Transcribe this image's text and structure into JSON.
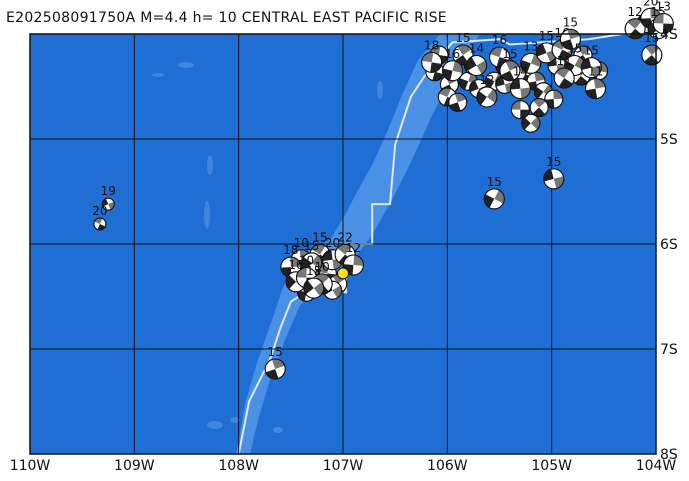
{
  "title": "E202508091750A M=4.4 h= 10 CENTRAL EAST PACIFIC RISE",
  "colors": {
    "ocean": "#1f6ed4",
    "ridge_shallow": "#4a90e4",
    "ridge_seamount": "#3f86de",
    "plate_boundary": "#dfe8f8",
    "grid": "#111111",
    "epicenter": "#ffe400"
  },
  "map": {
    "lon_range": [
      -110,
      -104
    ],
    "lat_range": [
      -8,
      -4
    ],
    "lon_ticks": [
      {
        "value": -110,
        "label": "110W"
      },
      {
        "value": -109,
        "label": "109W"
      },
      {
        "value": -108,
        "label": "108W"
      },
      {
        "value": -107,
        "label": "107W"
      },
      {
        "value": -106,
        "label": "106W"
      },
      {
        "value": -105,
        "label": "105W"
      },
      {
        "value": -104,
        "label": "104W"
      }
    ],
    "lat_ticks": [
      {
        "value": -4,
        "label": "4S"
      },
      {
        "value": -5,
        "label": "5S"
      },
      {
        "value": -6,
        "label": "6S"
      },
      {
        "value": -7,
        "label": "7S"
      },
      {
        "value": -8,
        "label": "8S"
      }
    ],
    "plate_boundary": [
      [
        -108.0,
        -8.0
      ],
      [
        -107.9,
        -7.5
      ],
      [
        -107.7,
        -7.1
      ],
      [
        -107.6,
        -6.8
      ],
      [
        -107.5,
        -6.55
      ],
      [
        -107.35,
        -6.45
      ],
      [
        -106.97,
        -6.46
      ],
      [
        -106.98,
        -6.0
      ],
      [
        -106.72,
        -6.0
      ],
      [
        -106.72,
        -5.62
      ],
      [
        -106.55,
        -5.62
      ],
      [
        -106.5,
        -5.05
      ],
      [
        -106.35,
        -4.6
      ],
      [
        -106.15,
        -4.3
      ],
      [
        -105.95,
        -4.08
      ],
      [
        -105.5,
        -4.05
      ],
      [
        -105.4,
        -4.1
      ],
      [
        -104.65,
        -4.05
      ],
      [
        -104.32,
        -4.0
      ]
    ],
    "epicenter": {
      "lon": -107.0,
      "lat": -6.28
    },
    "events": [
      {
        "lon": -109.25,
        "lat": -5.62,
        "mag": "19"
      },
      {
        "lon": -109.33,
        "lat": -5.81,
        "mag": "20"
      },
      {
        "lon": -107.65,
        "lat": -7.19,
        "mag": "15"
      },
      {
        "lon": -105.55,
        "lat": -5.57,
        "mag": "15"
      },
      {
        "lon": -104.98,
        "lat": -5.38,
        "mag": "15"
      },
      {
        "lon": -107.22,
        "lat": -6.1,
        "mag": "15"
      },
      {
        "lon": -107.4,
        "lat": -6.15,
        "mag": "10"
      },
      {
        "lon": -107.3,
        "lat": -6.18,
        "mag": "15"
      },
      {
        "lon": -107.1,
        "lat": -6.15,
        "mag": "20"
      },
      {
        "lon": -106.98,
        "lat": -6.1,
        "mag": "22"
      },
      {
        "lon": -107.5,
        "lat": -6.22,
        "mag": "18"
      },
      {
        "lon": -107.45,
        "lat": -6.36,
        "mag": "16"
      },
      {
        "lon": -107.35,
        "lat": -6.32,
        "mag": "10"
      },
      {
        "lon": -107.2,
        "lat": -6.38,
        "mag": "10"
      },
      {
        "lon": -106.9,
        "lat": -6.2,
        "mag": "12"
      },
      {
        "lon": -107.28,
        "lat": -6.42,
        "mag": "15"
      },
      {
        "lon": -106.15,
        "lat": -4.27,
        "mag": "18"
      },
      {
        "lon": -105.85,
        "lat": -4.2,
        "mag": "15"
      },
      {
        "lon": -105.95,
        "lat": -4.35,
        "mag": "16"
      },
      {
        "lon": -105.72,
        "lat": -4.3,
        "mag": "14"
      },
      {
        "lon": -105.5,
        "lat": -4.22,
        "mag": "16"
      },
      {
        "lon": -105.4,
        "lat": -4.35,
        "mag": "15"
      },
      {
        "lon": -105.2,
        "lat": -4.28,
        "mag": "13"
      },
      {
        "lon": -105.05,
        "lat": -4.18,
        "mag": "15"
      },
      {
        "lon": -104.9,
        "lat": -4.15,
        "mag": "16"
      },
      {
        "lon": -104.82,
        "lat": -4.05,
        "mag": "15"
      },
      {
        "lon": -104.78,
        "lat": -4.3,
        "mag": "15"
      },
      {
        "lon": -104.62,
        "lat": -4.32,
        "mag": "15"
      },
      {
        "lon": -104.88,
        "lat": -4.42,
        "mag": "11"
      },
      {
        "lon": -104.58,
        "lat": -4.52,
        "mag": "11"
      },
      {
        "lon": -105.62,
        "lat": -4.6,
        "mag": "12"
      },
      {
        "lon": -105.3,
        "lat": -4.52,
        "mag": "14"
      },
      {
        "lon": -104.2,
        "lat": -3.95,
        "mag": "12"
      },
      {
        "lon": -104.05,
        "lat": -3.85,
        "mag": "20"
      },
      {
        "lon": -103.98,
        "lat": -3.95,
        "mag": "15"
      },
      {
        "lon": -103.93,
        "lat": -3.9,
        "mag": "13"
      },
      {
        "lon": -104.04,
        "lat": -4.2,
        "mag": "15"
      }
    ],
    "unlabeled_events": [
      [
        -107.45,
        -6.28
      ],
      [
        -107.15,
        -6.28
      ],
      [
        -107.05,
        -6.38
      ],
      [
        -107.35,
        -6.46
      ],
      [
        -107.1,
        -6.44
      ],
      [
        -106.12,
        -4.36
      ],
      [
        -105.98,
        -4.48
      ],
      [
        -105.8,
        -4.45
      ],
      [
        -105.7,
        -4.52
      ],
      [
        -106.0,
        -4.6
      ],
      [
        -105.9,
        -4.65
      ],
      [
        -105.55,
        -4.45
      ],
      [
        -105.45,
        -4.48
      ],
      [
        -105.25,
        -4.38
      ],
      [
        -105.15,
        -4.45
      ],
      [
        -105.08,
        -4.55
      ],
      [
        -104.95,
        -4.3
      ],
      [
        -104.72,
        -4.4
      ],
      [
        -104.98,
        -4.62
      ],
      [
        -105.2,
        -4.85
      ],
      [
        -105.3,
        -4.72
      ],
      [
        -105.12,
        -4.7
      ],
      [
        -105.45,
        -4.3
      ],
      [
        -105.75,
        -4.3
      ],
      [
        -106.08,
        -4.2
      ],
      [
        -104.7,
        -4.2
      ],
      [
        -104.55,
        -4.35
      ],
      [
        -104.1,
        -3.9
      ]
    ]
  }
}
